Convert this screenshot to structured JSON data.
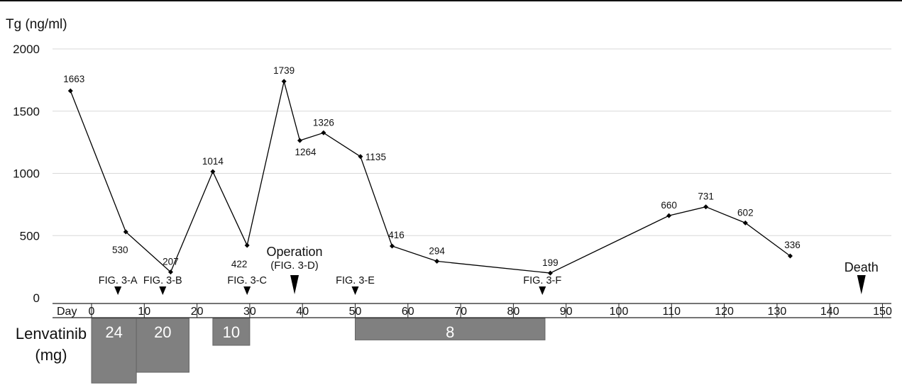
{
  "chart_data": {
    "type": "line",
    "ylabel": "Tg (ng/ml)",
    "xlabel": "Day",
    "xlim": [
      -8,
      150
    ],
    "ylim": [
      0,
      2000
    ],
    "xticks": [
      0,
      10,
      20,
      30,
      40,
      50,
      60,
      70,
      80,
      90,
      100,
      110,
      120,
      130,
      140,
      150
    ],
    "yticks": [
      0,
      500,
      1000,
      1500,
      2000
    ],
    "grid": "horizontal",
    "series": [
      {
        "points": [
          {
            "x": -4,
            "y": 1663,
            "label": "1663"
          },
          {
            "x": 6.5,
            "y": 530,
            "label": "530"
          },
          {
            "x": 15,
            "y": 207,
            "label": "207"
          },
          {
            "x": 23,
            "y": 1014,
            "label": "1014"
          },
          {
            "x": 29.5,
            "y": 422,
            "label": "422"
          },
          {
            "x": 36.5,
            "y": 1739,
            "label": "1739"
          },
          {
            "x": 39.5,
            "y": 1264,
            "label": "1264"
          },
          {
            "x": 44,
            "y": 1326,
            "label": "1326"
          },
          {
            "x": 51,
            "y": 1135,
            "label": "1135"
          },
          {
            "x": 57,
            "y": 416,
            "label": "416"
          },
          {
            "x": 65.5,
            "y": 294,
            "label": "294"
          },
          {
            "x": 87,
            "y": 199,
            "label": "199"
          },
          {
            "x": 109.5,
            "y": 660,
            "label": "660"
          },
          {
            "x": 116.5,
            "y": 731,
            "label": "731"
          },
          {
            "x": 124,
            "y": 602,
            "label": "602"
          },
          {
            "x": 132.5,
            "y": 336,
            "label": "336"
          }
        ]
      }
    ],
    "events": [
      {
        "x": 5,
        "lines": [
          "FIG. 3-A"
        ],
        "size": "small"
      },
      {
        "x": 13.5,
        "lines": [
          "FIG. 3-B"
        ],
        "size": "small"
      },
      {
        "x": 29.5,
        "lines": [
          "FIG. 3-C"
        ],
        "size": "small"
      },
      {
        "x": 38.5,
        "lines": [
          "Operation",
          "(FIG. 3-D)"
        ],
        "size": "large"
      },
      {
        "x": 50,
        "lines": [
          "FIG. 3-E"
        ],
        "size": "small"
      },
      {
        "x": 85.5,
        "lines": [
          "FIG. 3-F"
        ],
        "size": "small"
      },
      {
        "x": 146,
        "lines": [
          "Death"
        ],
        "size": "large"
      }
    ],
    "dosing": {
      "title_lines": [
        "Lenvatinib",
        "(mg)"
      ],
      "bars": [
        {
          "start": 0,
          "end": 8.5,
          "dose": 24,
          "label": "24"
        },
        {
          "start": 8.5,
          "end": 18.5,
          "dose": 20,
          "label": "20"
        },
        {
          "start": 23,
          "end": 30,
          "dose": 10,
          "label": "10"
        },
        {
          "start": 50,
          "end": 86,
          "dose": 8,
          "label": "8"
        }
      ]
    },
    "colors": {
      "line": "#000000",
      "marker": "#000000",
      "grid": "#d9d9d9",
      "bar": "#808080",
      "bar_text": "#ffffff"
    }
  }
}
